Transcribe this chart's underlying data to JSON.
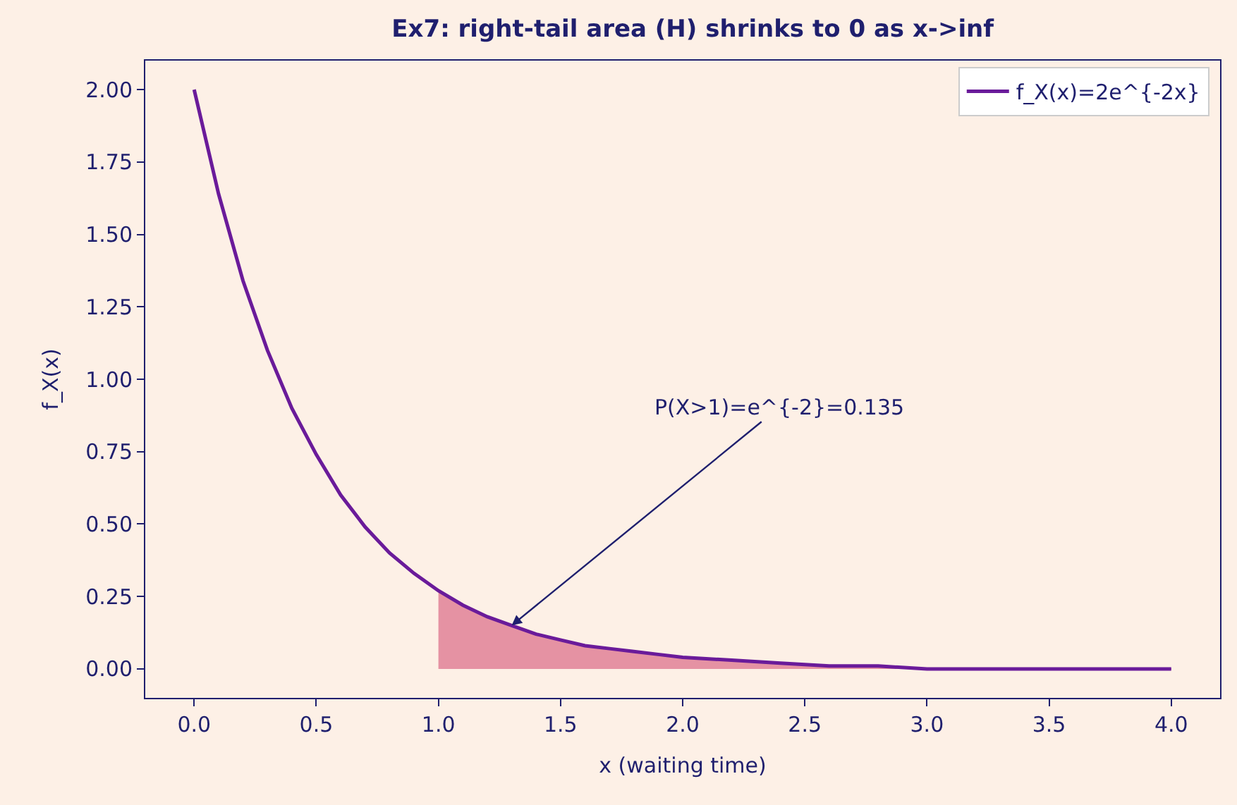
{
  "chart_data": {
    "type": "line",
    "title": "Ex7: right-tail area (H) shrinks to 0 as x->inf",
    "xlabel": "x (waiting time)",
    "ylabel": "f_X(x)",
    "series": [
      {
        "name": "f_X(x)=2e^{-2x}",
        "color": "#6a1b9a",
        "x": [
          0,
          0.1,
          0.2,
          0.3,
          0.4,
          0.5,
          0.6,
          0.7,
          0.8,
          0.9,
          1.0,
          1.1,
          1.2,
          1.3,
          1.4,
          1.5,
          1.6,
          1.7,
          1.8,
          1.9,
          2.0,
          2.2,
          2.4,
          2.6,
          2.8,
          3.0,
          3.5,
          4.0
        ],
        "values": [
          2.0,
          1.64,
          1.34,
          1.1,
          0.9,
          0.74,
          0.6,
          0.49,
          0.4,
          0.33,
          0.27,
          0.22,
          0.18,
          0.15,
          0.12,
          0.1,
          0.08,
          0.07,
          0.06,
          0.05,
          0.04,
          0.03,
          0.02,
          0.01,
          0.01,
          0,
          0,
          0
        ]
      },
      {
        "type": "area",
        "color": "#d9607f",
        "x": [
          1.0,
          1.1,
          1.2,
          1.3,
          1.4,
          1.5,
          1.6,
          1.7,
          1.8,
          1.9,
          2.0,
          2.2,
          2.4,
          2.6,
          2.8,
          3.0,
          3.5,
          4.0
        ],
        "values": [
          0.27,
          0.22,
          0.18,
          0.15,
          0.12,
          0.1,
          0.08,
          0.07,
          0.06,
          0.05,
          0.04,
          0.03,
          0.02,
          0.01,
          0.01,
          0,
          0,
          0
        ]
      }
    ],
    "annotations": [
      {
        "text": "P(X>1)=e^{-2}=0.135",
        "x": 1.3,
        "y": 0.15
      }
    ],
    "xlim": [
      -0.2,
      4.2
    ],
    "xticks": [
      {
        "value": 0,
        "label": "0.0"
      },
      {
        "value": 0.5,
        "label": "0.5"
      },
      {
        "value": 1,
        "label": "1.0"
      },
      {
        "value": 1.5,
        "label": "1.5"
      },
      {
        "value": 2,
        "label": "2.0"
      },
      {
        "value": 2.5,
        "label": "2.5"
      },
      {
        "value": 3,
        "label": "3.0"
      },
      {
        "value": 3.5,
        "label": "3.5"
      },
      {
        "value": 4,
        "label": "4.0"
      }
    ],
    "ylim": [
      -0.1,
      2.1
    ],
    "yticks": [
      {
        "value": 0,
        "label": "0.00"
      },
      {
        "value": 0.25,
        "label": "0.25"
      },
      {
        "value": 0.5,
        "label": "0.50"
      },
      {
        "value": 0.75,
        "label": "0.75"
      },
      {
        "value": 1,
        "label": "1.00"
      },
      {
        "value": 1.25,
        "label": "1.25"
      },
      {
        "value": 1.5,
        "label": "1.50"
      },
      {
        "value": 1.75,
        "label": "1.75"
      },
      {
        "value": 2,
        "label": "2.00"
      }
    ],
    "grid": false,
    "legend": "top right",
    "marker": "none",
    "line_style": "solid"
  }
}
